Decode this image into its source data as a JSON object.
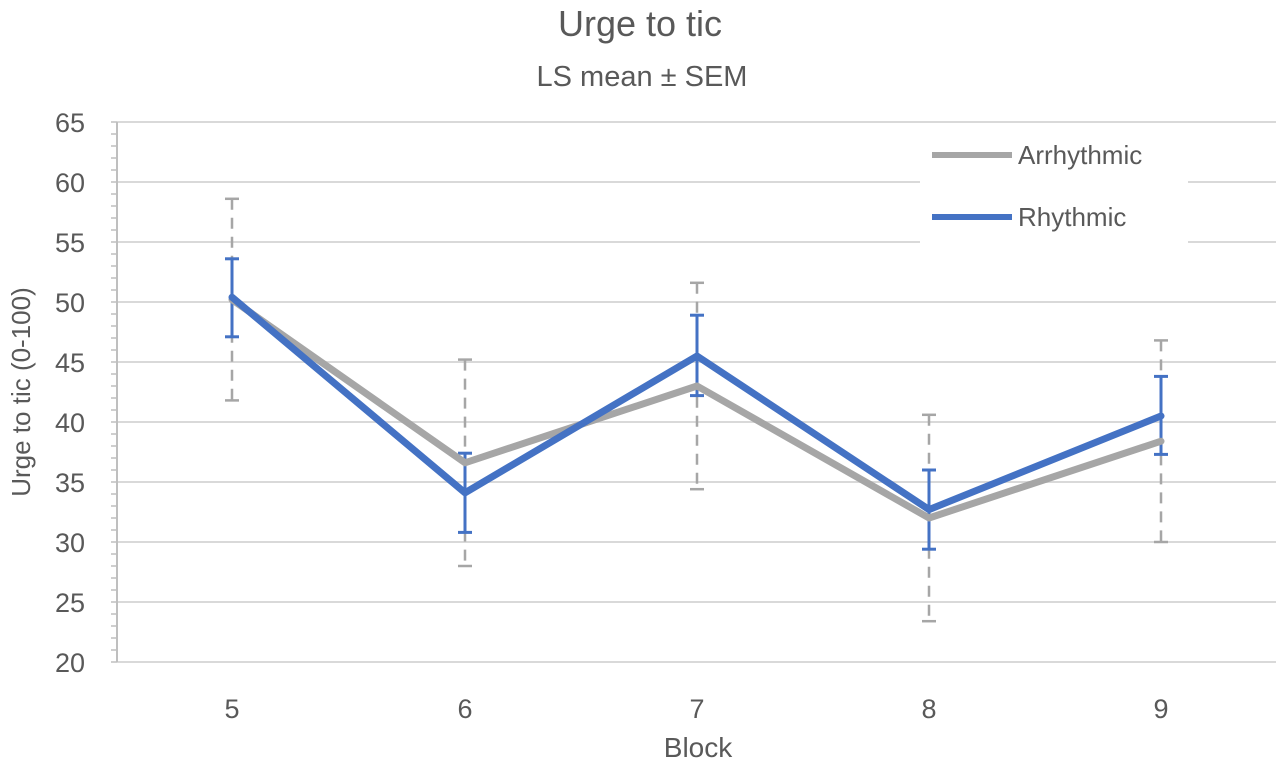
{
  "chart_data": {
    "type": "line",
    "title": "Urge to tic",
    "subtitle": "LS mean ± SEM",
    "xlabel": "Block",
    "ylabel": "Urge to tic (0-100)",
    "categories": [
      "5",
      "6",
      "7",
      "8",
      "9"
    ],
    "ylim": [
      20,
      65
    ],
    "yticks": [
      20,
      25,
      30,
      35,
      40,
      45,
      50,
      55,
      60,
      65
    ],
    "grid": true,
    "legend_position": "top-right",
    "series": [
      {
        "name": "Arrhythmic",
        "color": "#A6A6A6",
        "error_bar_style": "dashed",
        "values": [
          50.2,
          36.6,
          43.0,
          32.0,
          38.4
        ],
        "error_low": [
          41.8,
          28.0,
          34.4,
          23.4,
          30.0
        ],
        "error_high": [
          58.6,
          45.2,
          51.6,
          40.6,
          46.8
        ]
      },
      {
        "name": "Rhythmic",
        "color": "#4472C4",
        "error_bar_style": "solid",
        "values": [
          50.4,
          34.1,
          45.5,
          32.7,
          40.5
        ],
        "error_low": [
          47.1,
          30.8,
          42.2,
          29.4,
          37.3
        ],
        "error_high": [
          53.6,
          37.4,
          48.9,
          36.0,
          43.8
        ]
      }
    ]
  }
}
